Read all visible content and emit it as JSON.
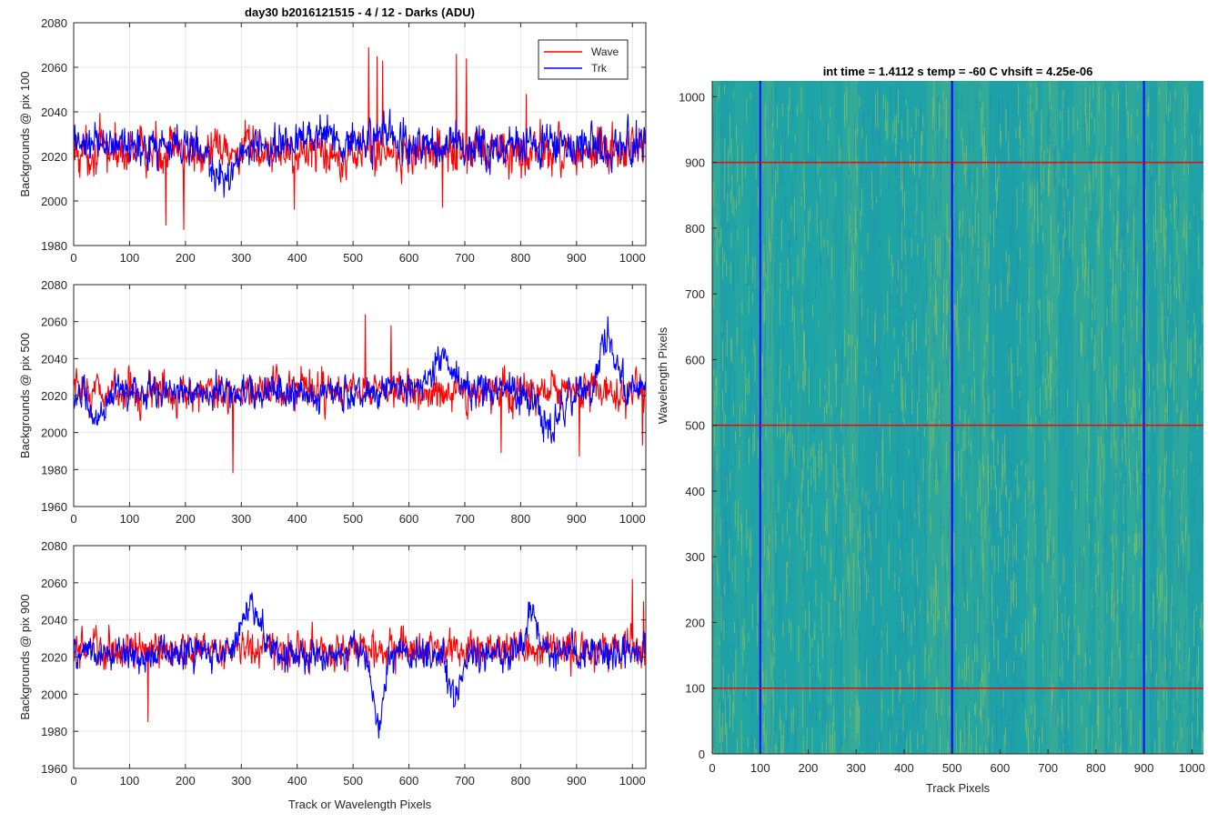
{
  "chart_data": [
    {
      "type": "line",
      "title": "day30 b2016121515 - 4 / 12 - Darks (ADU)",
      "xlabel": "",
      "ylabel": "Backgrounds @ pix 100",
      "xlim": [
        0,
        1024
      ],
      "ylim": [
        1980,
        2080
      ],
      "xticks": [
        0,
        100,
        200,
        300,
        400,
        500,
        600,
        700,
        800,
        900,
        1000
      ],
      "yticks": [
        1980,
        2000,
        2020,
        2040,
        2060,
        2080
      ],
      "grid": true,
      "legend": "top-right",
      "series": [
        {
          "name": "Wave",
          "color": "#ff0000",
          "base": 2022,
          "noise": 7,
          "spikes": [
            [
              165,
              1989
            ],
            [
              197,
              1987
            ],
            [
              395,
              1996
            ],
            [
              528,
              2069
            ],
            [
              543,
              2065
            ],
            [
              553,
              2063
            ],
            [
              660,
              1997
            ],
            [
              685,
              2066
            ],
            [
              703,
              2064
            ],
            [
              810,
              2048
            ]
          ]
        },
        {
          "name": "Trk",
          "color": "#0000ff",
          "base": 2025,
          "noise": 6,
          "features": [
            [
              265,
              2008,
              20
            ],
            [
              440,
              2032,
              30
            ],
            [
              560,
              2030,
              20
            ]
          ]
        }
      ]
    },
    {
      "type": "line",
      "title": "",
      "xlabel": "",
      "ylabel": "Backgrounds @ pix 500",
      "xlim": [
        0,
        1024
      ],
      "ylim": [
        1960,
        2080
      ],
      "xticks": [
        0,
        100,
        200,
        300,
        400,
        500,
        600,
        700,
        800,
        900,
        1000
      ],
      "yticks": [
        1960,
        1980,
        2000,
        2020,
        2040,
        2060,
        2080
      ],
      "grid": true,
      "series": [
        {
          "name": "Wave",
          "color": "#ff0000",
          "base": 2022,
          "noise": 7,
          "spikes": [
            [
              285,
              1978
            ],
            [
              522,
              2064
            ],
            [
              568,
              2058
            ],
            [
              765,
              1989
            ],
            [
              905,
              1987
            ],
            [
              1018,
              1993
            ]
          ]
        },
        {
          "name": "Trk",
          "color": "#0000ff",
          "base": 2022,
          "noise": 6,
          "features": [
            [
              40,
              2005,
              12
            ],
            [
              660,
              2040,
              18
            ],
            [
              850,
              2002,
              18
            ],
            [
              955,
              2052,
              14
            ]
          ]
        }
      ]
    },
    {
      "type": "line",
      "title": "",
      "xlabel": "Track or Wavelength Pixels",
      "ylabel": "Backgrounds @ pix 900",
      "xlim": [
        0,
        1024
      ],
      "ylim": [
        1960,
        2080
      ],
      "xticks": [
        0,
        100,
        200,
        300,
        400,
        500,
        600,
        700,
        800,
        900,
        1000
      ],
      "yticks": [
        1960,
        1980,
        2000,
        2020,
        2040,
        2060,
        2080
      ],
      "grid": true,
      "series": [
        {
          "name": "Wave",
          "color": "#ff0000",
          "base": 2024,
          "noise": 7,
          "spikes": [
            [
              133,
              1985
            ],
            [
              1000,
              2062
            ],
            [
              1020,
              2050
            ]
          ]
        },
        {
          "name": "Trk",
          "color": "#0000ff",
          "base": 2022,
          "noise": 6,
          "features": [
            [
              318,
              2050,
              14
            ],
            [
              545,
              1982,
              10
            ],
            [
              680,
              1998,
              10
            ],
            [
              820,
              2046,
              10
            ]
          ]
        }
      ]
    },
    {
      "type": "heatmap",
      "title": "int time = 1.4112 s    temp = -60 C    vhsift = 4.25e-06",
      "xlabel": "Track Pixels",
      "ylabel": "Wavelength Pixels",
      "xlim": [
        0,
        1024
      ],
      "ylim": [
        0,
        1024
      ],
      "xticks": [
        0,
        100,
        200,
        300,
        400,
        500,
        600,
        700,
        800,
        900,
        1000
      ],
      "yticks": [
        0,
        100,
        200,
        300,
        400,
        500,
        600,
        700,
        800,
        900,
        1000
      ],
      "vertical_lines": {
        "x": [
          100,
          500,
          900
        ],
        "color": "#0000ff"
      },
      "horizontal_lines": {
        "y": [
          100,
          500,
          900
        ],
        "color": "#ff0000"
      },
      "colors": {
        "low": "#1e8ab4",
        "mid": "#1fa5a6",
        "high": "#a6c94b"
      }
    }
  ]
}
